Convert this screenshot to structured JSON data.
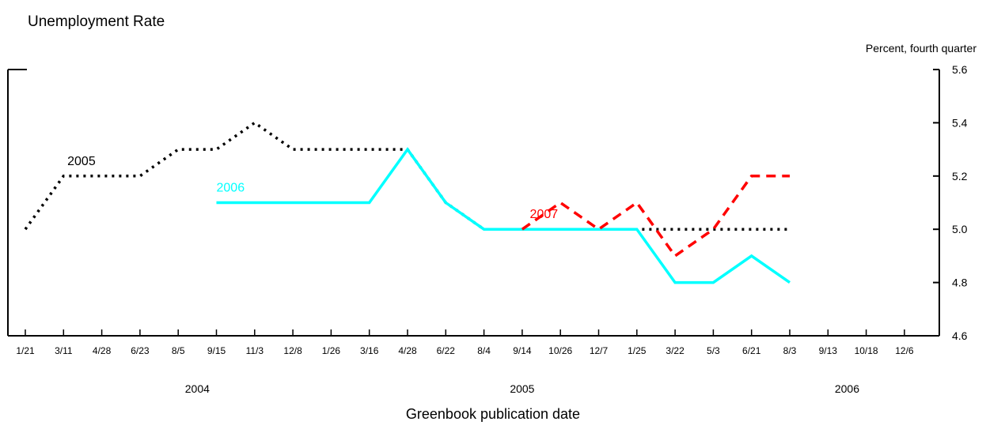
{
  "chart_data": {
    "type": "line",
    "title": "Unemployment Rate",
    "y_unit_label": "Percent, fourth quarter",
    "xlabel": "Greenbook publication date",
    "ylim": [
      4.6,
      5.6
    ],
    "yticks": [
      "4.6",
      "4.8",
      "5.0",
      "5.2",
      "5.4",
      "5.6"
    ],
    "categories": [
      "1/21",
      "3/11",
      "4/28",
      "6/23",
      "8/5",
      "9/15",
      "11/3",
      "12/8",
      "1/26",
      "3/16",
      "4/28",
      "6/22",
      "8/4",
      "9/14",
      "10/26",
      "12/7",
      "1/25",
      "3/22",
      "5/3",
      "6/21",
      "8/3",
      "9/13",
      "10/18",
      "12/6"
    ],
    "year_labels": [
      {
        "label": "2004",
        "at_category": 4.5
      },
      {
        "label": "2005",
        "at_category": 13
      },
      {
        "label": "2006",
        "at_category": 21.5
      }
    ],
    "grid": false,
    "series": [
      {
        "name": "2005",
        "color": "#000000",
        "style": "dotted",
        "label_at": 1.1,
        "values": [
          5.0,
          5.2,
          5.2,
          5.2,
          5.3,
          5.3,
          5.4,
          5.3,
          5.3,
          5.3,
          5.3,
          5.1,
          5.0,
          5.0,
          5.0,
          5.0,
          5.0,
          5.0,
          5.0,
          5.0,
          5.0,
          null,
          null,
          null
        ]
      },
      {
        "name": "2006",
        "color": "#00ffff",
        "style": "solid",
        "label_at": 5.0,
        "values": [
          null,
          null,
          null,
          null,
          null,
          5.1,
          5.1,
          5.1,
          5.1,
          5.1,
          5.3,
          5.1,
          5.0,
          5.0,
          5.0,
          5.0,
          5.0,
          4.8,
          4.8,
          4.9,
          4.8,
          null,
          null,
          null
        ]
      },
      {
        "name": "2007",
        "color": "#ff0000",
        "style": "dashed",
        "label_at": 13.2,
        "values": [
          null,
          null,
          null,
          null,
          null,
          null,
          null,
          null,
          null,
          null,
          null,
          null,
          null,
          5.0,
          5.1,
          5.0,
          5.1,
          4.9,
          5.0,
          5.2,
          5.2,
          null,
          null,
          null
        ]
      }
    ]
  }
}
